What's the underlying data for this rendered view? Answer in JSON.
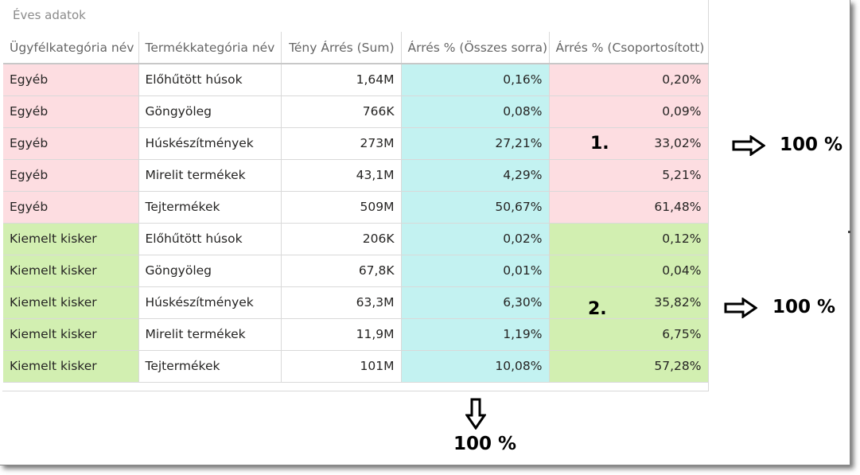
{
  "visual": {
    "title": "Éves adatok",
    "columns": [
      "Ügyfélkategória név",
      "Termékkategória név",
      "Tény Árrés (Sum)",
      "Árrés % (Összes sorra)",
      "Árrés % (Csoportosított)"
    ],
    "rows": [
      {
        "group": "Egyéb",
        "product": "Előhűtött húsok",
        "sum": "1,64M",
        "pct_all": "0,16%",
        "pct_group": "0,20%"
      },
      {
        "group": "Egyéb",
        "product": "Göngyöleg",
        "sum": "766K",
        "pct_all": "0,08%",
        "pct_group": "0,09%"
      },
      {
        "group": "Egyéb",
        "product": "Húskészítmények",
        "sum": "273M",
        "pct_all": "27,21%",
        "pct_group": "33,02%"
      },
      {
        "group": "Egyéb",
        "product": "Mirelit termékek",
        "sum": "43,1M",
        "pct_all": "4,29%",
        "pct_group": "5,21%"
      },
      {
        "group": "Egyéb",
        "product": "Tejtermékek",
        "sum": "509M",
        "pct_all": "50,67%",
        "pct_group": "61,48%"
      },
      {
        "group": "Kiemelt kisker",
        "product": "Előhűtött húsok",
        "sum": "206K",
        "pct_all": "0,02%",
        "pct_group": "0,12%"
      },
      {
        "group": "Kiemelt kisker",
        "product": "Göngyöleg",
        "sum": "67,8K",
        "pct_all": "0,01%",
        "pct_group": "0,04%"
      },
      {
        "group": "Kiemelt kisker",
        "product": "Húskészítmények",
        "sum": "63,3M",
        "pct_all": "6,30%",
        "pct_group": "35,82%"
      },
      {
        "group": "Kiemelt kisker",
        "product": "Mirelit termékek",
        "sum": "11,9M",
        "pct_all": "1,19%",
        "pct_group": "6,75%"
      },
      {
        "group": "Kiemelt kisker",
        "product": "Tejtermékek",
        "sum": "101M",
        "pct_all": "10,08%",
        "pct_group": "57,28%"
      }
    ]
  },
  "annotations": {
    "marker_1": "1.",
    "marker_2": "2.",
    "total_group1": "100 %",
    "total_group2": "100 %",
    "total_column": "100 %"
  },
  "colors": {
    "egyeb": "#fddde1",
    "kiemelt": "#d2efb1",
    "all_rows": "#c3f2f1"
  }
}
